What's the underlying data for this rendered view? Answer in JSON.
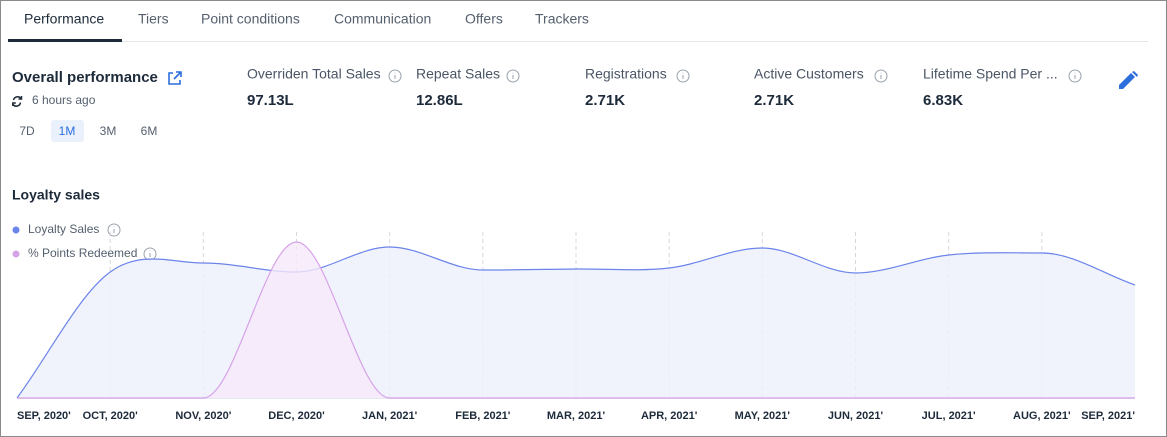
{
  "tabs": [
    "Performance",
    "Tiers",
    "Point conditions",
    "Communication",
    "Offers",
    "Trackers"
  ],
  "overview": {
    "title": "Overall performance",
    "updated": "6 hours ago",
    "ranges": [
      "7D",
      "1M",
      "3M",
      "6M"
    ]
  },
  "metrics": [
    {
      "label": "Overriden Total Sales",
      "value": "97.13L"
    },
    {
      "label": "Repeat Sales",
      "value": "12.86L"
    },
    {
      "label": "Registrations",
      "value": "2.71K"
    },
    {
      "label": "Active Customers",
      "value": "2.71K"
    },
    {
      "label": "Lifetime Spend Per ...",
      "value": "6.83K"
    }
  ],
  "chart_data": {
    "type": "area",
    "title": "Loyalty sales",
    "categories": [
      "SEP, 2020'",
      "OCT, 2020'",
      "NOV, 2020'",
      "DEC, 2020'",
      "JAN, 2021'",
      "FEB, 2021'",
      "MAR, 2021'",
      "APR, 2021'",
      "MAY, 2021'",
      "JUN, 2021'",
      "JUL, 2021'",
      "AUG, 2021'",
      "SEP, 2021'"
    ],
    "series": [
      {
        "name": "Loyalty Sales",
        "color": "#6b84ea",
        "values": [
          0,
          126,
          135,
          126,
          151,
          128,
          129,
          130,
          150,
          125,
          143,
          145,
          113
        ]
      },
      {
        "name": "% Points Redeemed",
        "color": "#d6a2e8",
        "values": [
          0,
          0,
          0,
          156,
          0,
          0,
          0,
          0,
          0,
          0,
          0,
          0,
          0
        ]
      }
    ],
    "ylim": [
      0,
      160
    ]
  }
}
